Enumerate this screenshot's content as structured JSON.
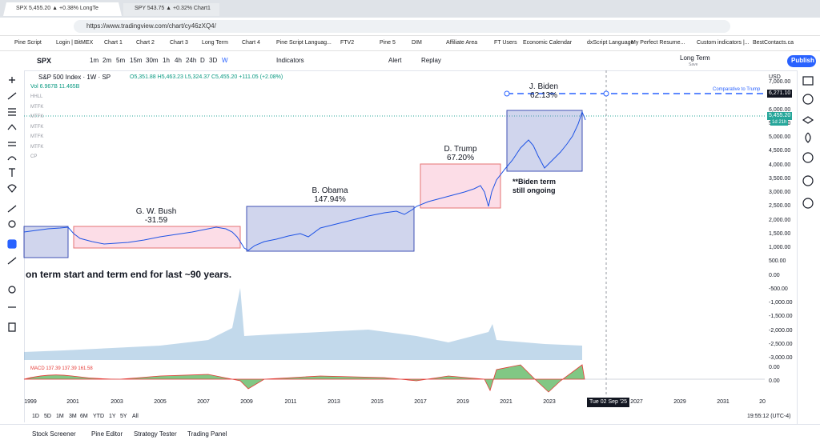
{
  "browser": {
    "tabs": [
      "SPX 5,455.20 ▲ +0.38% LongTe",
      "SPY 543.75 ▲ +0.32% Chart1"
    ],
    "url": "https://www.tradingview.com/chart/cy46zXQ4/",
    "bookmarks": [
      "Pine Script",
      "Login | BitMEX",
      "Chart 1",
      "Chart 2",
      "Chart 3",
      "Long Term",
      "Chart 4",
      "Pine Script Languag...",
      "FTV2",
      "Pine 5",
      "DIM",
      "Affiliate Area",
      "FT Users",
      "Economic Calendar",
      "dxScript Language",
      "My Perfect Resume...",
      "Custom indicators |...",
      "BestContacts.ca"
    ]
  },
  "toolbar": {
    "symbol": "SPX",
    "intervals": [
      "1m",
      "2m",
      "5m",
      "15m",
      "30m",
      "1h",
      "4h",
      "24h",
      "D",
      "3D",
      "W"
    ],
    "indicators": "Indicators",
    "alert": "Alert",
    "replay": "Replay",
    "layout_name": "Long Term",
    "layout_status": "Save",
    "publish": "Publish"
  },
  "legend": {
    "title": "S&P 500 Index · 1W · SP",
    "ohlc": "O5,351.88 H5,463.23 L5,324.37 C5,455.20 +111.05 (+2.08%)",
    "volume": "Vol 6.967B 11.465B",
    "indicators": [
      "HHLL",
      "MTFK",
      "MTFK",
      "MTFK",
      "MTFK",
      "MTFK",
      "CP"
    ]
  },
  "annotations": {
    "terms": [
      {
        "name": "G. W. Bush",
        "change": "-31.59"
      },
      {
        "name": "B. Obama",
        "change": "147.94%"
      },
      {
        "name": "D. Trump",
        "change": "67.20%"
      },
      {
        "name": "J. Biden",
        "change": "62.13%"
      }
    ],
    "note": [
      "**Biden term",
      "still ongoing"
    ],
    "headline": "on term start and term end for last ~90 years.",
    "comparison": "Comparative to Trump"
  },
  "price_axis": {
    "currency": "USD",
    "labels": [
      "7,000.00",
      "6,500.00",
      "6,000.00",
      "5,500.00",
      "5,000.00",
      "4,500.00",
      "4,000.00",
      "3,500.00",
      "3,000.00",
      "2,500.00",
      "2,000.00",
      "1,500.00",
      "1,000.00",
      "500.00",
      "0.00",
      "-500.00",
      "-1,000.00",
      "-1,500.00",
      "-2,000.00",
      "-2,500.00",
      "-3,000.00"
    ],
    "marker": "6,271.10",
    "last_price": "5,455.20",
    "countdown": "1d 21h"
  },
  "macd": {
    "legend": "MACD 137.39 137.39 161.58",
    "axis_labels": [
      "0.00",
      "0.00"
    ]
  },
  "time_axis": {
    "labels": [
      "1999",
      "2001",
      "2003",
      "2005",
      "2007",
      "2009",
      "2011",
      "2013",
      "2015",
      "2017",
      "2019",
      "2021",
      "2023",
      "2027",
      "2029",
      "2031",
      "20"
    ],
    "crosshair": "Tue 02 Sep '25"
  },
  "footer": {
    "ranges": [
      "1D",
      "5D",
      "1M",
      "3M",
      "6M",
      "YTD",
      "1Y",
      "5Y",
      "All"
    ],
    "clock": "19:55:12 (UTC-4)",
    "panels": [
      "Stock Screener",
      "Pine Editor",
      "Strategy Tester",
      "Trading Panel"
    ]
  }
}
